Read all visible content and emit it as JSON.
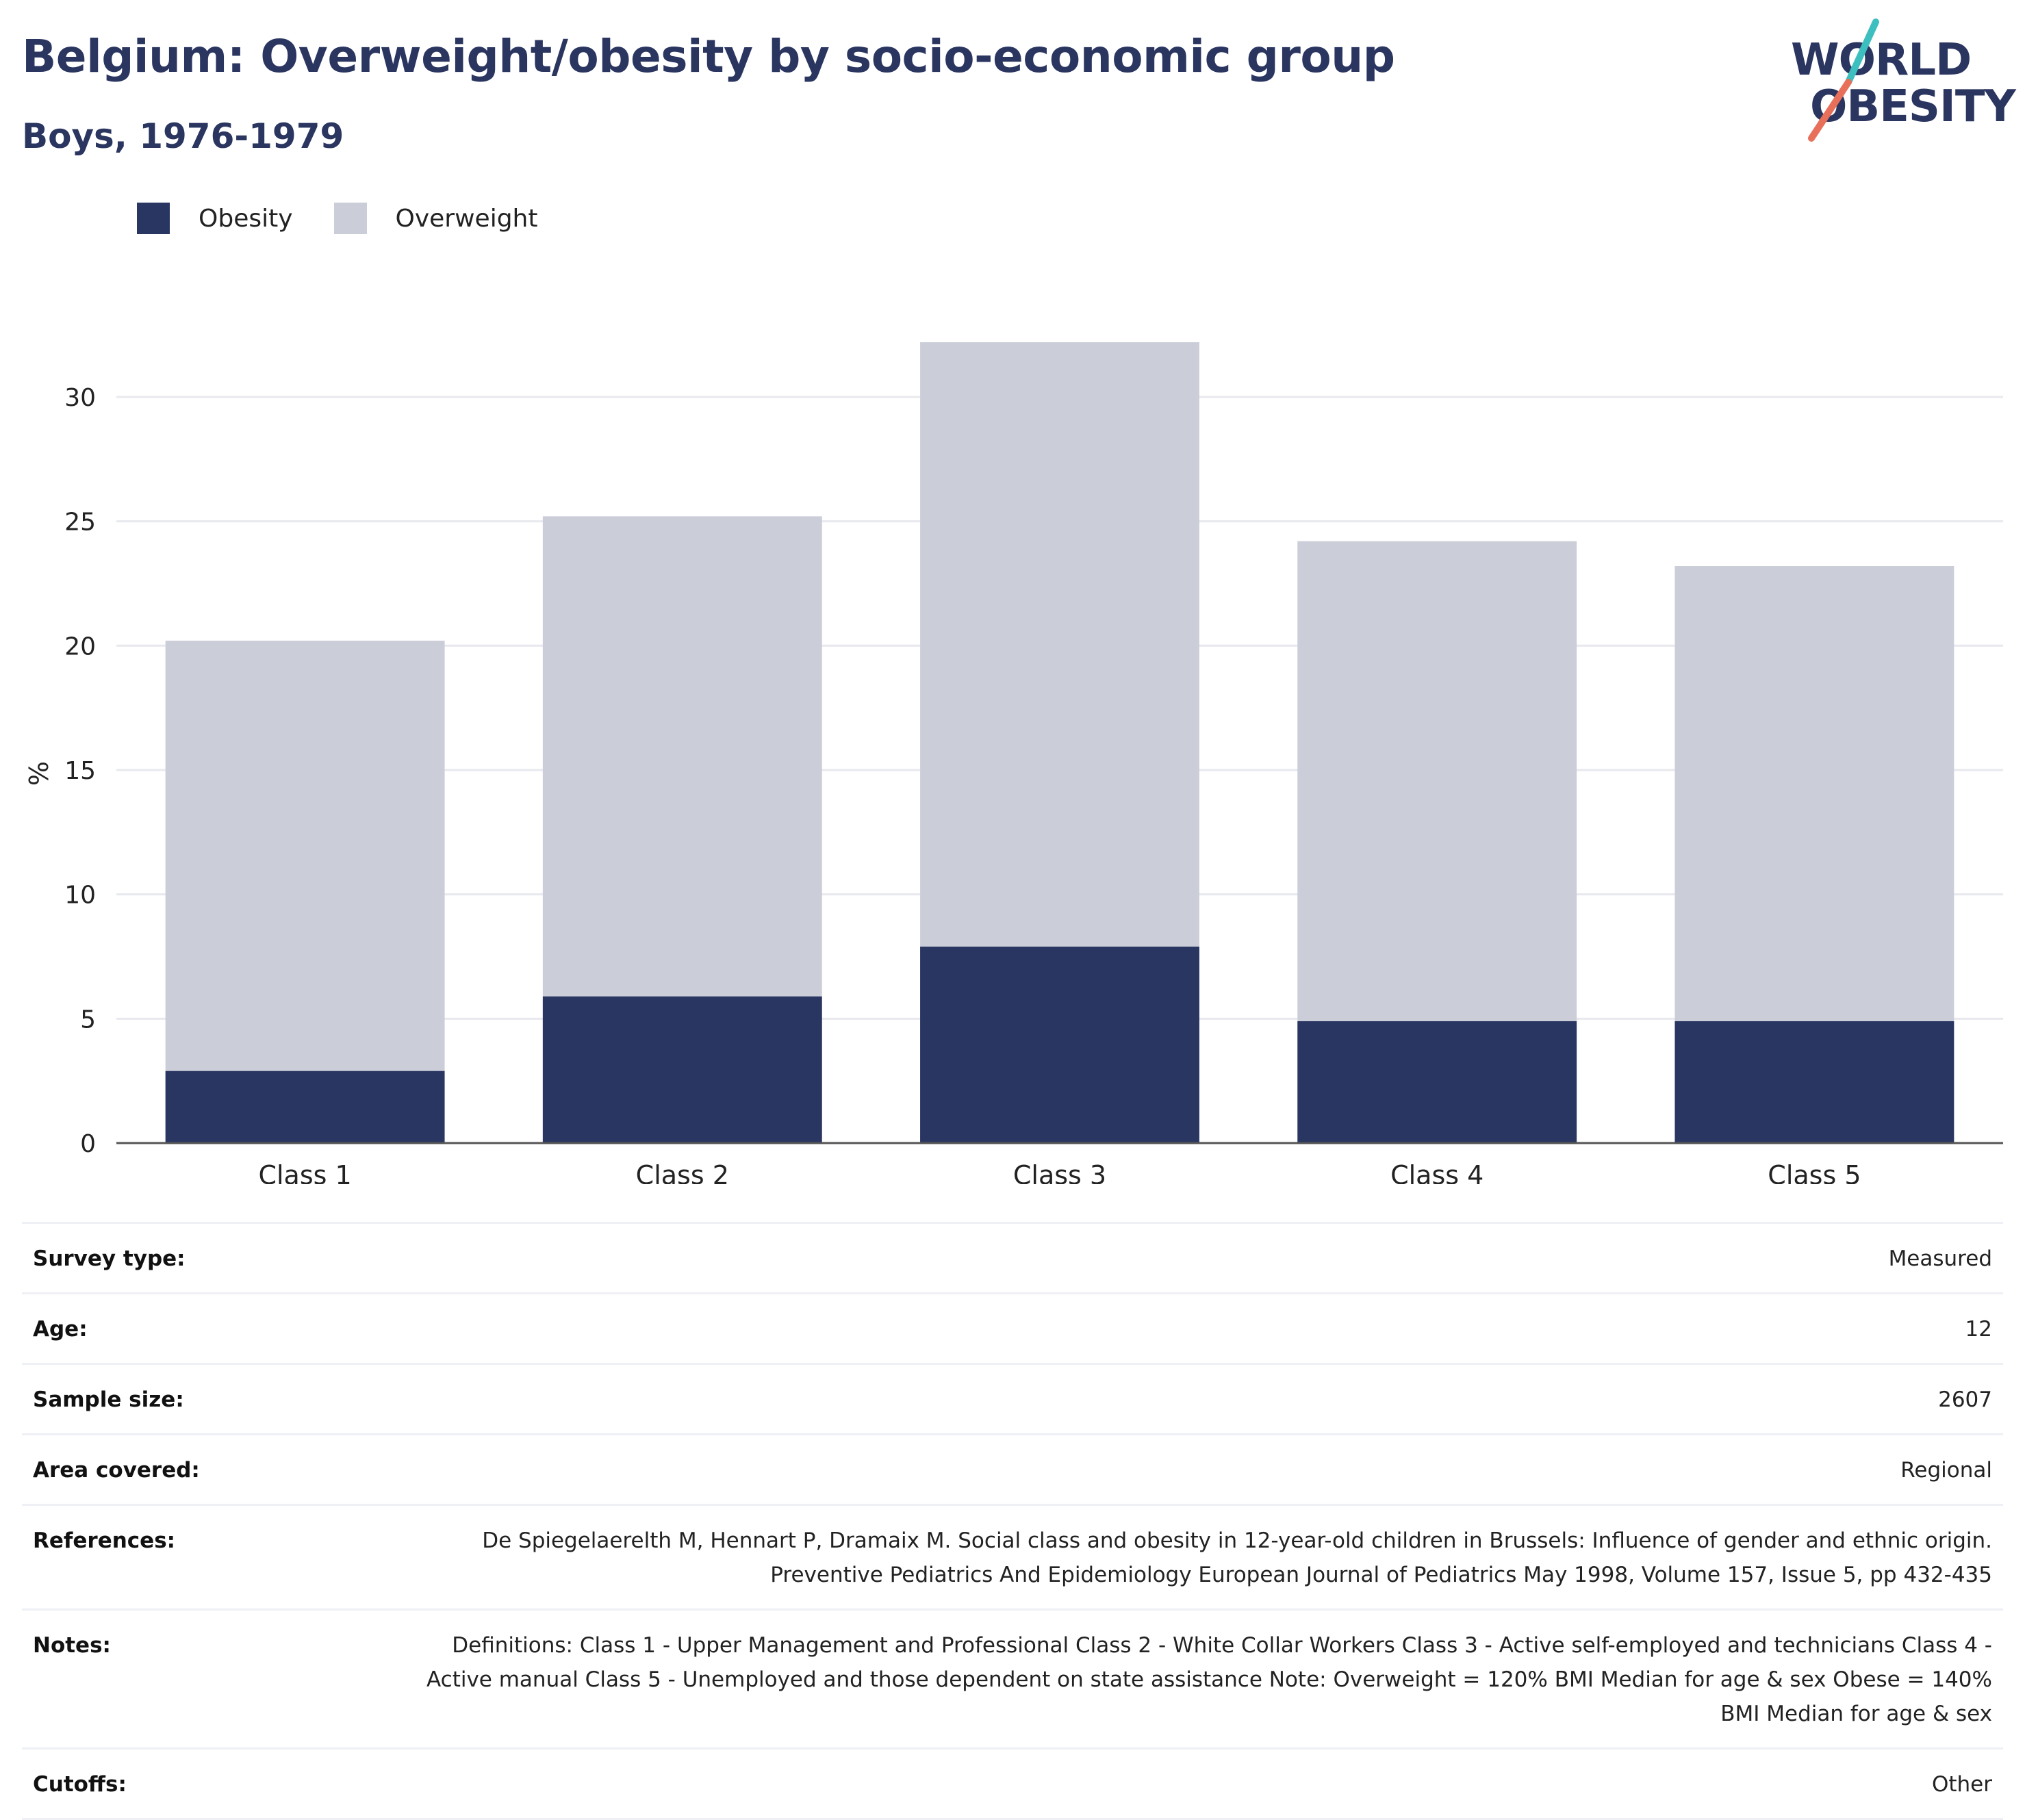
{
  "header": {
    "title": "Belgium: Overweight/obesity by socio-economic group",
    "subtitle": "Boys, 1976-1979"
  },
  "logo": {
    "line1": "WORLD",
    "line2": "OBESITY",
    "colors": {
      "text": "#2a3560",
      "slash_top": "#3dbfbf",
      "slash_bottom": "#e8705a"
    }
  },
  "colors": {
    "obesity": "#2a3662",
    "overweight": "#cbcdd8",
    "grid": "#e8e9ee",
    "axis": "#555555"
  },
  "chart_data": {
    "type": "bar",
    "stacked": true,
    "categories": [
      "Class 1",
      "Class 2",
      "Class 3",
      "Class 4",
      "Class 5"
    ],
    "series": [
      {
        "name": "Obesity",
        "values": [
          2.9,
          5.9,
          7.9,
          4.9,
          4.9
        ]
      },
      {
        "name": "Overweight",
        "values": [
          17.3,
          19.3,
          24.3,
          19.3,
          18.3
        ]
      }
    ],
    "ylabel": "%",
    "ylim": [
      0,
      32.2
    ],
    "yticks": [
      0,
      5,
      10,
      15,
      20,
      25,
      30
    ],
    "grid": true,
    "legend_position": "top-left"
  },
  "meta": [
    {
      "label": "Survey type:",
      "value": "Measured"
    },
    {
      "label": "Age:",
      "value": "12"
    },
    {
      "label": "Sample size:",
      "value": "2607"
    },
    {
      "label": "Area covered:",
      "value": "Regional"
    },
    {
      "label": "References:",
      "value": "De Spiegelaerelth M, Hennart P, Dramaix M. Social class and obesity in 12-year-old children in Brussels: Influence of gender and ethnic origin. Preventive Pediatrics And Epidemiology European Journal of Pediatrics May 1998, Volume 157, Issue 5, pp 432-435"
    },
    {
      "label": "Notes:",
      "value": "Definitions: Class 1 - Upper Management and Professional Class 2 - White Collar Workers Class 3 - Active self-employed and technicians Class 4 - Active manual Class 5 - Unemployed and those dependent on state assistance Note: Overweight = 120% BMI Median for age & sex Obese = 140% BMI Median for age & sex"
    },
    {
      "label": "Cutoffs:",
      "value": "Other"
    }
  ]
}
